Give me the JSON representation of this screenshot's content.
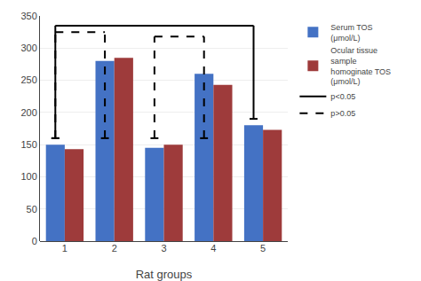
{
  "chart_data": {
    "type": "bar",
    "categories": [
      "1",
      "2",
      "3",
      "4",
      "5"
    ],
    "series": [
      {
        "name": "Serum TOS\n(μmol/L)",
        "color": "#4472C4",
        "values": [
          150,
          280,
          145,
          260,
          180
        ]
      },
      {
        "name": "Ocular tissue\nsample\nhomoginate TOS\n(μmol/L)",
        "color": "#9E3B3B",
        "values": [
          143,
          285,
          150,
          243,
          173
        ]
      }
    ],
    "xlabel": "Rat groups",
    "ylim": [
      0,
      350
    ],
    "yticks": [
      0,
      50,
      100,
      150,
      200,
      250,
      300,
      350
    ],
    "grid": true,
    "significance": [
      {
        "name": "p<0.05",
        "line_style": "solid"
      },
      {
        "name": "p>0.05",
        "line_style": "dashed"
      }
    ],
    "brackets": [
      {
        "from": "1",
        "to": "2",
        "y_top": 325,
        "y_bottom": [
          160,
          160
        ],
        "line_style": "dashed"
      },
      {
        "from": "3",
        "to": "4",
        "y_top": 318,
        "y_bottom": [
          160,
          160
        ],
        "line_style": "dashed"
      },
      {
        "from": "1",
        "to": "5",
        "y_top": 335,
        "y_bottom": [
          160,
          190
        ],
        "line_style": "solid"
      }
    ]
  }
}
